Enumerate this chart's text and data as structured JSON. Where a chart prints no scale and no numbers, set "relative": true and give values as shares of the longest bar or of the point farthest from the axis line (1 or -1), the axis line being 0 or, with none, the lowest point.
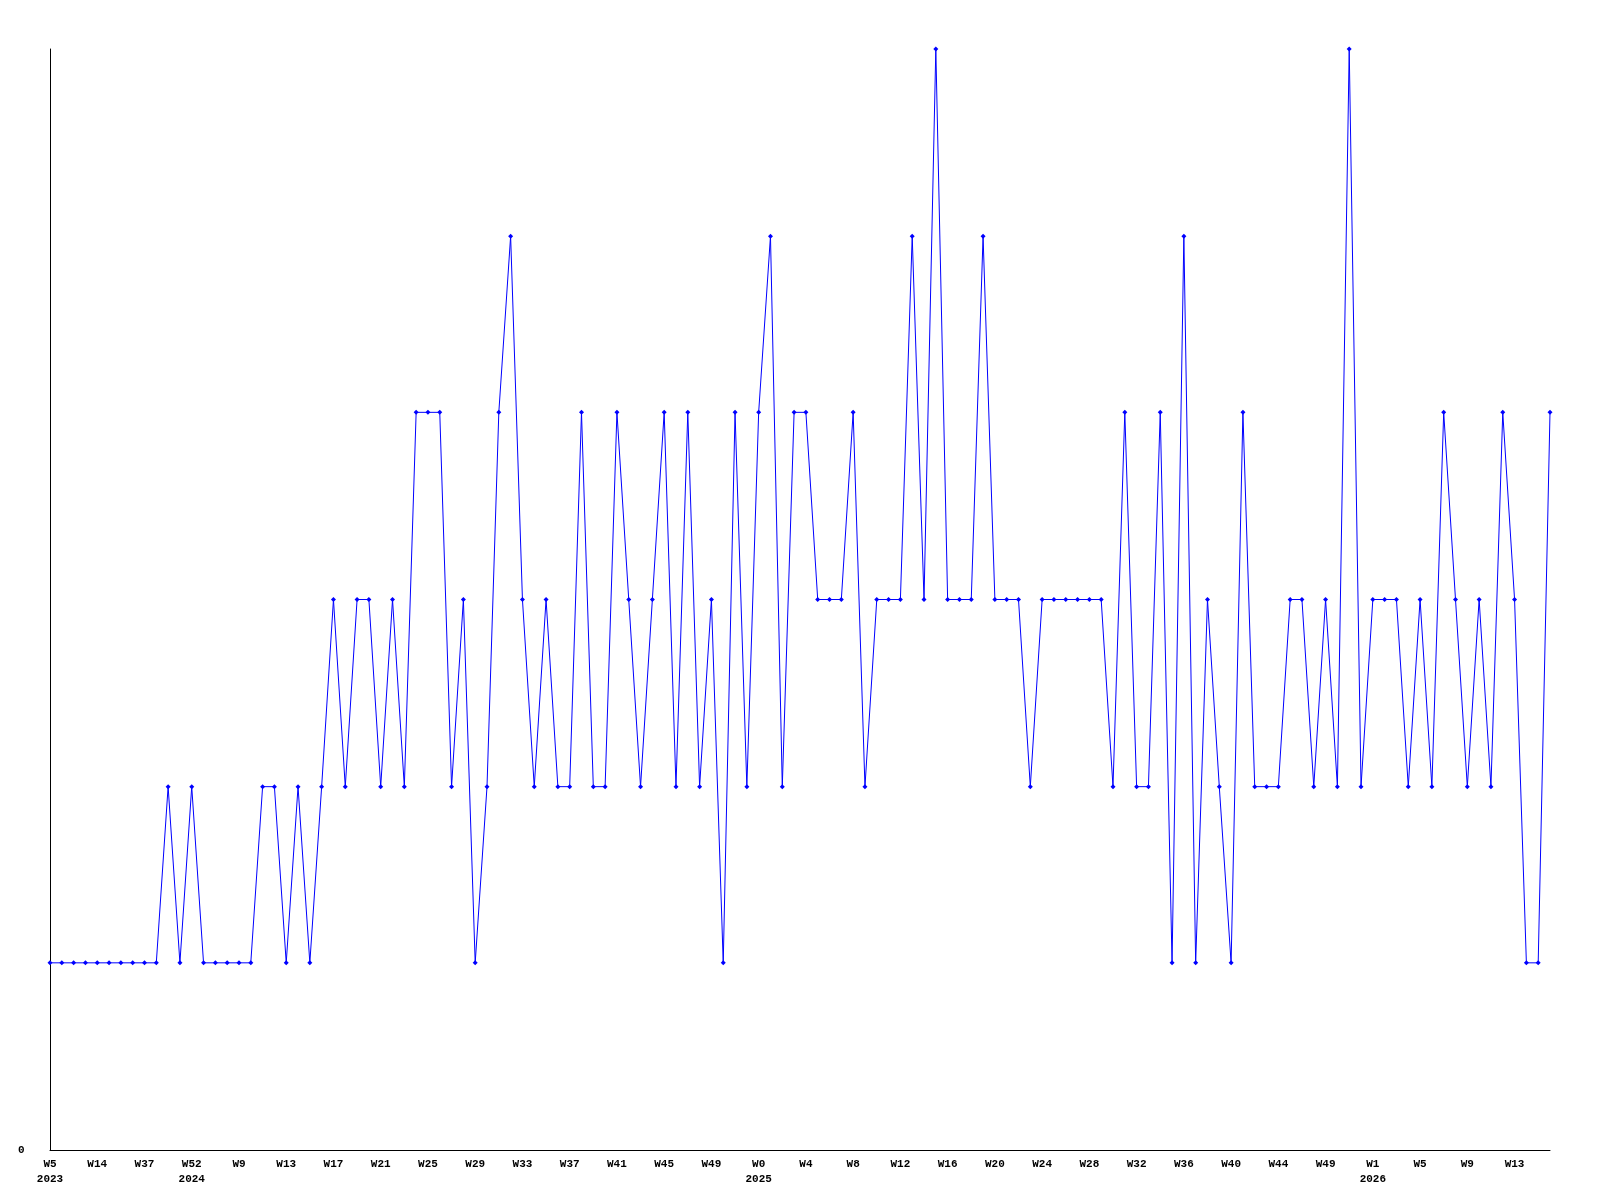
{
  "chart_data": {
    "type": "line",
    "relative": true,
    "color": "#0000ff",
    "marker": "diamond",
    "line_style": "solid",
    "grid": false,
    "categories": [
      "W5\n2023",
      null,
      null,
      null,
      "W14",
      null,
      null,
      null,
      "W37",
      null,
      null,
      null,
      "W52\n2024",
      null,
      null,
      null,
      "W9",
      null,
      null,
      null,
      "W13",
      null,
      null,
      null,
      "W17",
      null,
      null,
      null,
      "W21",
      null,
      null,
      null,
      "W25",
      null,
      null,
      null,
      "W29",
      null,
      null,
      null,
      "W33",
      null,
      null,
      null,
      "W37",
      null,
      null,
      null,
      "W41",
      null,
      null,
      null,
      "W45",
      null,
      null,
      null,
      "W49",
      null,
      null,
      null,
      "W0\n2025",
      null,
      null,
      null,
      "W4",
      null,
      null,
      null,
      "W8",
      null,
      null,
      null,
      "W12",
      null,
      null,
      null,
      "W16",
      null,
      null,
      null,
      "W20",
      null,
      null,
      null,
      "W24",
      null,
      null,
      null,
      "W28",
      null,
      null,
      null,
      "W32",
      null,
      null,
      null,
      "W36",
      null,
      null,
      null,
      "W40",
      null,
      null,
      null,
      "W44",
      null,
      null,
      null,
      "W49",
      null,
      null,
      null,
      "W1\n2026",
      null,
      null,
      null,
      "W5",
      null,
      null,
      null,
      "W9",
      null,
      null,
      null,
      "W13",
      null,
      null,
      null
    ],
    "values": [
      0.17,
      0.17,
      0.17,
      0.17,
      0.17,
      0.17,
      0.17,
      0.17,
      0.17,
      0.17,
      0.33,
      0.17,
      0.33,
      0.17,
      0.17,
      0.17,
      0.17,
      0.17,
      0.33,
      0.33,
      0.17,
      0.33,
      0.17,
      0.33,
      0.5,
      0.33,
      0.5,
      0.5,
      0.33,
      0.5,
      0.33,
      0.67,
      0.67,
      0.67,
      0.33,
      0.5,
      0.17,
      0.33,
      0.67,
      0.83,
      0.5,
      0.33,
      0.5,
      0.33,
      0.33,
      0.67,
      0.33,
      0.33,
      0.67,
      0.5,
      0.33,
      0.5,
      0.67,
      0.33,
      0.67,
      0.33,
      0.5,
      0.17,
      0.67,
      0.33,
      0.67,
      0.83,
      0.33,
      0.67,
      0.67,
      0.5,
      0.5,
      0.5,
      0.67,
      0.33,
      0.5,
      0.5,
      0.5,
      0.83,
      0.5,
      1,
      0.5,
      0.5,
      0.5,
      0.83,
      0.5,
      0.5,
      0.5,
      0.33,
      0.5,
      0.5,
      0.5,
      0.5,
      0.5,
      0.5,
      0.33,
      0.67,
      0.33,
      0.33,
      0.67,
      0.17,
      0.83,
      0.17,
      0.5,
      0.33,
      0.17,
      0.67,
      0.33,
      0.33,
      0.33,
      0.5,
      0.5,
      0.33,
      0.5,
      0.33,
      1,
      0.33,
      0.5,
      0.5,
      0.5,
      0.33,
      0.5,
      0.33,
      0.67,
      0.5,
      0.33,
      0.5,
      0.33,
      0.67,
      0.5,
      0.17,
      0.17,
      0.67
    ],
    "annotations": [
      "0"
    ]
  }
}
